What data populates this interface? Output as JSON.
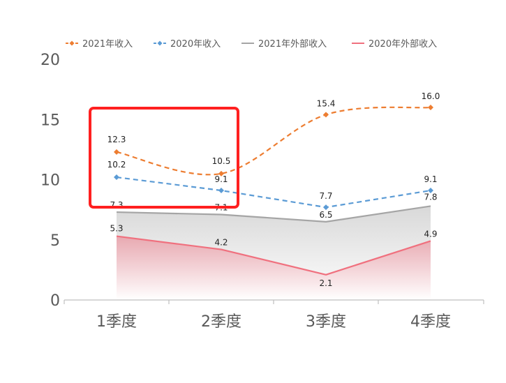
{
  "chart_data": {
    "type": "line",
    "categories": [
      "1季度",
      "2季度",
      "3季度",
      "4季度"
    ],
    "ylim": [
      0,
      20
    ],
    "yticks": [
      0,
      5,
      10,
      15,
      20
    ],
    "grid": false,
    "legend_position": "top",
    "series": [
      {
        "name": "2021年收入",
        "values": [
          12.3,
          10.5,
          15.4,
          16.0
        ],
        "color": "#ED7D31",
        "style": "dashed-smooth-diamond"
      },
      {
        "name": "2020年收入",
        "values": [
          10.2,
          9.1,
          7.7,
          9.1
        ],
        "color": "#5B9BD5",
        "style": "dashed-diamond"
      },
      {
        "name": "2021年外部收入",
        "values": [
          7.3,
          7.1,
          6.5,
          7.8
        ],
        "color": "#A5A5A5",
        "style": "area-line"
      },
      {
        "name": "2020年外部收入",
        "values": [
          5.3,
          4.2,
          2.1,
          4.9
        ],
        "color": "#F0707E",
        "style": "area-line"
      }
    ],
    "annotation": {
      "type": "highlight-box",
      "color": "#FF2020",
      "covers_categories": [
        "1季度",
        "2季度"
      ]
    }
  }
}
